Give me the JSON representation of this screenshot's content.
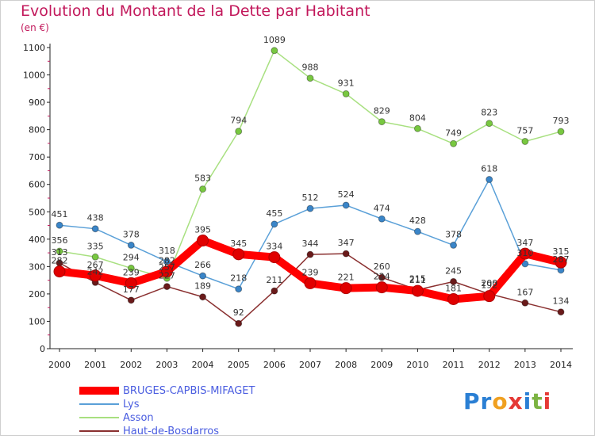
{
  "title": "Evolution du Montant de la Dette par Habitant",
  "unit": "(en €)",
  "logo": {
    "text": "Proxiti",
    "letter_colors": [
      "#2a7fd4",
      "#2a7fd4",
      "#f0a020",
      "#e53935",
      "#2a7fd4",
      "#7cb342",
      "#e53935"
    ]
  },
  "chart_data": {
    "type": "line",
    "x": [
      "2000",
      "2001",
      "2002",
      "2003",
      "2004",
      "2005",
      "2006",
      "2007",
      "2008",
      "2009",
      "2010",
      "2011",
      "2012",
      "2013",
      "2014"
    ],
    "ylim": [
      0,
      1100
    ],
    "yticks": [
      0,
      100,
      200,
      300,
      400,
      500,
      600,
      700,
      800,
      900,
      1000,
      1100
    ],
    "grid": false,
    "legend_position": "bottom-left",
    "series": [
      {
        "name": "BRUGES-CAPBIS-MIFAGET",
        "color": "#ff0000",
        "marker": "#e00000",
        "line_width": 10,
        "marker_r": 7,
        "values": [
          282,
          267,
          239,
          282,
          395,
          345,
          334,
          239,
          221,
          224,
          211,
          181,
          192,
          347,
          315
        ]
      },
      {
        "name": "Lys",
        "color": "#5aa0d8",
        "marker": "#3a85c8",
        "line_width": 1.5,
        "marker_r": 4,
        "values": [
          451,
          438,
          378,
          318,
          266,
          218,
          455,
          512,
          524,
          474,
          428,
          378,
          618,
          310,
          287
        ]
      },
      {
        "name": "Asson",
        "color": "#a8e080",
        "marker": "#78c840",
        "line_width": 1.5,
        "marker_r": 4,
        "values": [
          356,
          335,
          294,
          257,
          583,
          794,
          1089,
          988,
          931,
          829,
          804,
          749,
          823,
          757,
          793
        ]
      },
      {
        "name": "Haut-de-Bosdarros",
        "color": "#8a3030",
        "marker": "#6a1a1a",
        "line_width": 1.5,
        "marker_r": 4,
        "values": [
          313,
          242,
          177,
          227,
          189,
          92,
          211,
          344,
          347,
          260,
          215,
          245,
          200,
          167,
          134
        ]
      }
    ]
  }
}
